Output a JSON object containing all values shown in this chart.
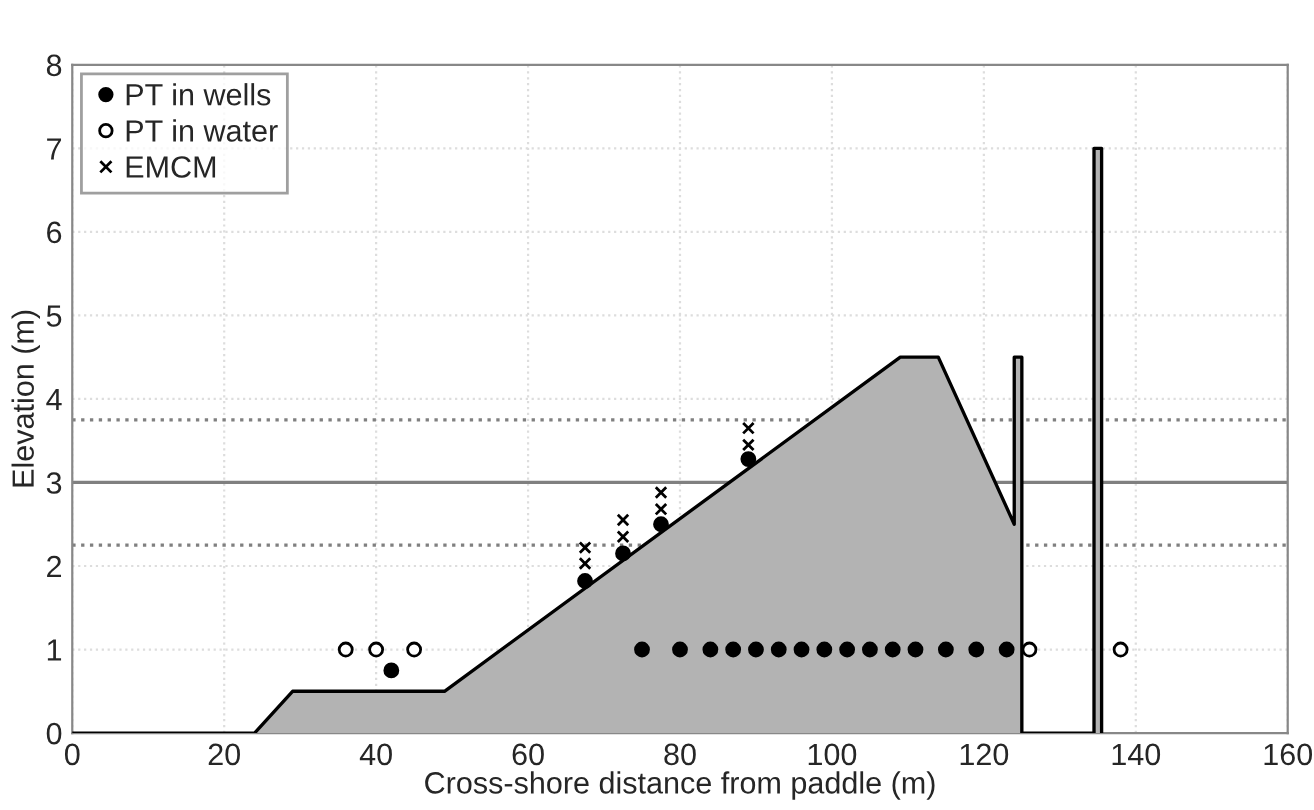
{
  "chart_data": {
    "type": "scatter",
    "xlabel": "Cross-shore distance from paddle (m)",
    "ylabel": "Elevation (m)",
    "xlim": [
      0,
      160
    ],
    "xticks": [
      0,
      20,
      40,
      60,
      80,
      100,
      120,
      140,
      160
    ],
    "ylim": [
      0,
      8
    ],
    "yticks": [
      0,
      1,
      2,
      3,
      4,
      5,
      6,
      7,
      8
    ],
    "grid": true,
    "legend": "top left",
    "series": [
      {
        "type": "area",
        "color": "#b3b3b3",
        "x": [
          0,
          24,
          29,
          49,
          109,
          114,
          124,
          124,
          125,
          125,
          134.5,
          134.5,
          135.5,
          135.5
        ],
        "values": [
          0,
          0,
          0.5,
          0.5,
          4.5,
          4.5,
          2.5,
          4.5,
          4.5,
          0,
          0,
          7,
          7,
          0
        ]
      },
      {
        "name": "PT in wells",
        "color": "#000000",
        "marker": "circle",
        "x": [
          42,
          67.5,
          72.5,
          77.5,
          89,
          75,
          80,
          84,
          87,
          90,
          93,
          96,
          99,
          102,
          105,
          108,
          111,
          115,
          119,
          123
        ],
        "values": [
          0.75,
          1.82,
          2.15,
          2.5,
          3.28,
          1,
          1,
          1,
          1,
          1,
          1,
          1,
          1,
          1,
          1,
          1,
          1,
          1,
          1,
          1
        ]
      },
      {
        "name": "PT in water",
        "color": "#ffffff",
        "marker": "circle",
        "x": [
          36,
          40,
          45,
          126,
          138
        ],
        "values": [
          1,
          1,
          1,
          1,
          1
        ]
      },
      {
        "name": "EMCM",
        "color": "#000000",
        "marker": "cross",
        "x": [
          67.5,
          67.5,
          72.5,
          72.5,
          77.5,
          77.5,
          89,
          89
        ],
        "values": [
          2.03,
          2.22,
          2.35,
          2.55,
          2.68,
          2.88,
          3.45,
          3.65
        ]
      }
    ],
    "ref_lines": [
      {
        "axis": "y",
        "value": 3,
        "color": "#808080",
        "line_style": "solid"
      },
      {
        "axis": "y",
        "value": 3.75,
        "color": "#808080",
        "line_style": "dotted"
      },
      {
        "axis": "y",
        "value": 2.25,
        "color": "#808080",
        "line_style": "dotted"
      }
    ]
  }
}
